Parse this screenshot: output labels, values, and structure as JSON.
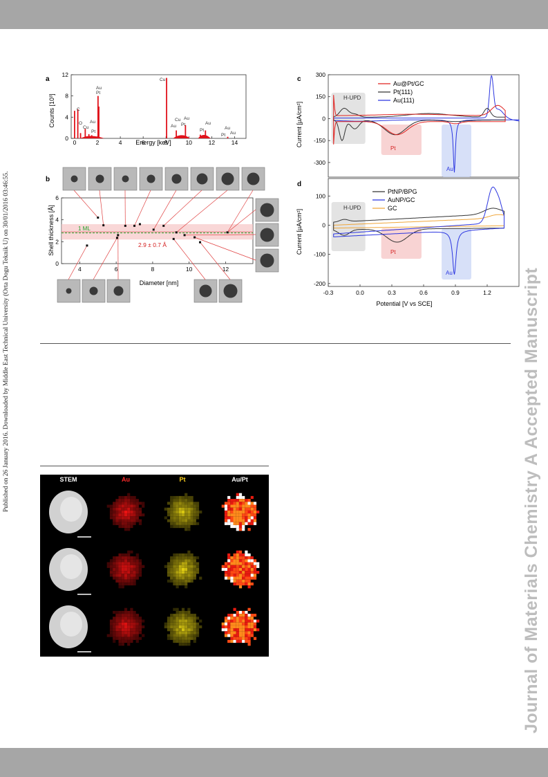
{
  "header": {},
  "side_note": "Published on 26 January 2016. Downloaded by Middle East Technical University (Orta Dogu Teknik U) on 30/01/2016 03:46:55.",
  "watermark": "Journal of Materials Chemistry A Accepted Manuscript",
  "colors": {
    "band": "#a6a6a6",
    "red": "#e0211f",
    "blue": "#2b35e0",
    "black": "#333333",
    "orange": "#f0a63a",
    "green": "#22a22a"
  },
  "panel_a": {
    "letter": "a",
    "ylabel": "Counts [10³]",
    "xlabel": "Energy [keV]",
    "peak_labels": [
      "C",
      "O",
      "Cu",
      "Au",
      "Pt",
      "Au",
      "Pt",
      "Cu",
      "Cu",
      "Au",
      "Au",
      "Pt",
      "Pt",
      "Au",
      "Au",
      "Pt",
      "Au"
    ]
  },
  "panel_b": {
    "letter": "b",
    "ylabel": "Shell thickness [Å]",
    "xlabel": "Diameter [nm]",
    "ml_label": "1 ML",
    "mean_label": "2.9 ± 0.7 Å"
  },
  "panel_c": {
    "letter": "c",
    "ylabel": "Current [µA/cm²]",
    "region_hupd": "H-UPD",
    "region_pt": "Pt",
    "region_au": "Au"
  },
  "panel_d": {
    "letter": "d",
    "ylabel": "Current [µA/cm²]",
    "xlabel": "Potential [V vs SCE]",
    "region_hupd": "H-UPD",
    "region_pt": "Pt",
    "region_au": "Au"
  },
  "stem": {
    "columns": [
      "STEM",
      "Au",
      "Pt",
      "Au/Pt"
    ],
    "column_colors": [
      "#ffffff",
      "#ff2a2a",
      "#ffd21e",
      "#ffffff"
    ]
  },
  "chart_data": [
    {
      "type": "bar",
      "panel": "a",
      "xlabel": "Energy [keV]",
      "ylabel": "Counts [10³]",
      "xlim": [
        -0.3,
        15
      ],
      "ylim": [
        0,
        12
      ],
      "xticks": [
        0,
        2,
        4,
        6,
        8,
        10,
        12,
        14
      ],
      "yticks": [
        0,
        4,
        8,
        12
      ],
      "x": [
        0.0,
        0.28,
        0.52,
        0.93,
        1.25,
        1.5,
        2.05,
        2.12,
        8.05,
        8.9,
        9.7,
        11.0,
        11.45,
        13.4
      ],
      "values": [
        5.2,
        5.5,
        1.0,
        1.8,
        0.8,
        0.6,
        8.0,
        6.0,
        11.4,
        1.5,
        2.5,
        0.7,
        1.5,
        0.3
      ]
    },
    {
      "type": "scatter",
      "panel": "b",
      "xlabel": "Diameter [nm]",
      "ylabel": "Shell thickness [Å]",
      "xlim": [
        3,
        13.5
      ],
      "ylim": [
        0,
        6
      ],
      "xticks": [
        4,
        6,
        8,
        10,
        12
      ],
      "yticks": [
        0,
        2,
        4,
        6
      ],
      "x": [
        4.4,
        5.0,
        5.3,
        6.05,
        6.1,
        6.5,
        7.0,
        7.3,
        8.05,
        8.6,
        9.15,
        9.3,
        9.75,
        10.3,
        10.6,
        12.1
      ],
      "y": [
        1.65,
        4.2,
        3.5,
        2.35,
        2.6,
        3.45,
        3.45,
        3.6,
        3.1,
        3.45,
        2.25,
        2.85,
        2.6,
        2.4,
        1.95,
        2.85
      ],
      "reference_lines": [
        {
          "label": "1 ML",
          "y": 2.8
        }
      ],
      "band": {
        "center": 2.9,
        "halfwidth": 0.7,
        "label": "2.9 ± 0.7 Å"
      }
    },
    {
      "type": "line",
      "panel": "c",
      "xlim": [
        -0.3,
        1.5
      ],
      "ylim": [
        -400,
        300
      ],
      "yticks": [
        300,
        150,
        0,
        -150,
        -300
      ],
      "series": [
        {
          "name": "Au@Pt/GC",
          "color": "#e0211f"
        },
        {
          "name": "Pt(111)",
          "color": "#333333"
        },
        {
          "name": "Au(111)",
          "color": "#2b35e0"
        }
      ],
      "regions": [
        {
          "label": "H-UPD",
          "from": -0.27,
          "to": 0.05
        },
        {
          "label": "Pt",
          "from": 0.2,
          "to": 0.58
        },
        {
          "label": "Au",
          "from": 0.77,
          "to": 1.05
        }
      ]
    },
    {
      "type": "line",
      "panel": "d",
      "xlabel": "Potential [V vs SCE]",
      "ylabel": "Current [µA/cm²]",
      "xlim": [
        -0.3,
        1.5
      ],
      "ylim": [
        -210,
        160
      ],
      "xticks": [
        -0.3,
        0.0,
        0.3,
        0.6,
        0.9,
        1.2
      ],
      "xtick_labels": [
        "-0.3",
        "0.0",
        "0.3",
        "0.6",
        "0.9",
        "1.2"
      ],
      "yticks": [
        100,
        0,
        -100,
        -200
      ],
      "series": [
        {
          "name": "PtNP/BPG",
          "color": "#333333"
        },
        {
          "name": "AuNP/GC",
          "color": "#2b35e0"
        },
        {
          "name": "GC",
          "color": "#f0a63a"
        }
      ],
      "regions": [
        {
          "label": "H-UPD",
          "from": -0.27,
          "to": 0.05
        },
        {
          "label": "Pt",
          "from": 0.2,
          "to": 0.58
        },
        {
          "label": "Au",
          "from": 0.77,
          "to": 1.05
        }
      ]
    }
  ]
}
